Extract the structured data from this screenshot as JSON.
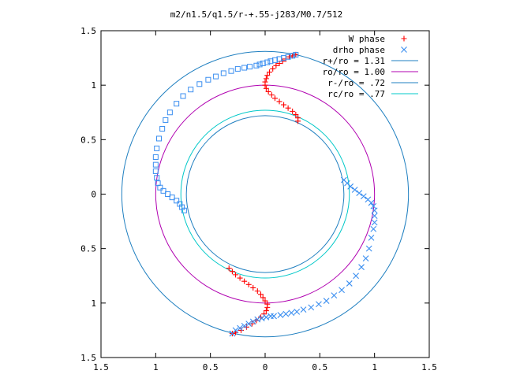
{
  "chart_data": {
    "type": "scatter",
    "title": "m2/n1.5/q1.5/r-+.55-j283/M0.7/512",
    "xlim": [
      -1.5,
      1.5
    ],
    "ylim": [
      -1.5,
      1.5
    ],
    "x_ticks": [
      {
        "value": -1.5,
        "label": "1.5"
      },
      {
        "value": -1,
        "label": "1"
      },
      {
        "value": -0.5,
        "label": "0.5"
      },
      {
        "value": 0,
        "label": "0"
      },
      {
        "value": 0.5,
        "label": "0.5"
      },
      {
        "value": 1,
        "label": "1"
      },
      {
        "value": 1.5,
        "label": "1.5"
      }
    ],
    "y_ticks": [
      {
        "value": 1.5,
        "label": "1.5"
      },
      {
        "value": 1,
        "label": "1"
      },
      {
        "value": 0.5,
        "label": "0.5"
      },
      {
        "value": 0,
        "label": "0"
      },
      {
        "value": -0.5,
        "label": "0.5"
      },
      {
        "value": -1,
        "label": "1"
      },
      {
        "value": -1.5,
        "label": "1.5"
      }
    ],
    "grid": false,
    "legend_position": "top-right",
    "series": [
      {
        "name": "W phase",
        "marker": "+",
        "color": "#ff0000",
        "points": [
          [
            0.28,
            1.28
          ],
          [
            0.25,
            1.27
          ],
          [
            0.22,
            1.26
          ],
          [
            0.19,
            1.24
          ],
          [
            0.16,
            1.22
          ],
          [
            0.13,
            1.2
          ],
          [
            0.1,
            1.18
          ],
          [
            0.07,
            1.15
          ],
          [
            0.04,
            1.12
          ],
          [
            0.02,
            1.09
          ],
          [
            0.01,
            1.06
          ],
          [
            0.0,
            1.03
          ],
          [
            0.0,
            1.0
          ],
          [
            0.01,
            0.97
          ],
          [
            0.03,
            0.94
          ],
          [
            0.06,
            0.91
          ],
          [
            0.09,
            0.88
          ],
          [
            0.13,
            0.85
          ],
          [
            0.17,
            0.82
          ],
          [
            0.21,
            0.79
          ],
          [
            0.25,
            0.76
          ],
          [
            0.28,
            0.73
          ],
          [
            0.3,
            0.7
          ],
          [
            0.3,
            0.67
          ],
          [
            -0.33,
            -0.68
          ],
          [
            -0.3,
            -0.71
          ],
          [
            -0.27,
            -0.74
          ],
          [
            -0.23,
            -0.77
          ],
          [
            -0.19,
            -0.8
          ],
          [
            -0.15,
            -0.83
          ],
          [
            -0.11,
            -0.86
          ],
          [
            -0.07,
            -0.89
          ],
          [
            -0.04,
            -0.92
          ],
          [
            -0.02,
            -0.95
          ],
          [
            0.0,
            -0.98
          ],
          [
            0.02,
            -1.01
          ],
          [
            0.02,
            -1.04
          ],
          [
            0.01,
            -1.07
          ],
          [
            -0.01,
            -1.1
          ],
          [
            -0.04,
            -1.13
          ],
          [
            -0.08,
            -1.16
          ],
          [
            -0.12,
            -1.19
          ],
          [
            -0.17,
            -1.22
          ],
          [
            -0.22,
            -1.25
          ],
          [
            -0.27,
            -1.27
          ],
          [
            -0.3,
            -1.28
          ]
        ]
      },
      {
        "name": "drho phase",
        "marker": "x",
        "color": "#3a8ef0",
        "points": [
          [
            -0.3,
            -1.28
          ],
          [
            -0.27,
            -1.25
          ],
          [
            -0.23,
            -1.23
          ],
          [
            -0.19,
            -1.21
          ],
          [
            -0.15,
            -1.19
          ],
          [
            -0.11,
            -1.17
          ],
          [
            -0.07,
            -1.15
          ],
          [
            -0.03,
            -1.14
          ],
          [
            0.01,
            -1.13
          ],
          [
            0.05,
            -1.12
          ],
          [
            0.08,
            -1.12
          ],
          [
            0.14,
            -1.11
          ],
          [
            0.19,
            -1.1
          ],
          [
            0.24,
            -1.09
          ],
          [
            0.29,
            -1.08
          ],
          [
            0.35,
            -1.06
          ],
          [
            0.42,
            -1.04
          ],
          [
            0.49,
            -1.01
          ],
          [
            0.56,
            -0.98
          ],
          [
            0.63,
            -0.93
          ],
          [
            0.7,
            -0.88
          ],
          [
            0.77,
            -0.82
          ],
          [
            0.83,
            -0.75
          ],
          [
            0.88,
            -0.67
          ],
          [
            0.92,
            -0.59
          ],
          [
            0.95,
            -0.5
          ],
          [
            0.97,
            -0.4
          ],
          [
            0.99,
            -0.32
          ],
          [
            1.0,
            -0.26
          ],
          [
            1.0,
            -0.2
          ],
          [
            1.0,
            -0.15
          ],
          [
            0.99,
            -0.11
          ],
          [
            0.97,
            -0.08
          ],
          [
            0.94,
            -0.05
          ],
          [
            0.9,
            -0.02
          ],
          [
            0.86,
            0.01
          ],
          [
            0.82,
            0.04
          ],
          [
            0.78,
            0.07
          ],
          [
            0.75,
            0.1
          ],
          [
            0.72,
            0.13
          ]
        ]
      },
      {
        "name": "",
        "marker": "square",
        "color": "#3a8ef0",
        "points": [
          [
            0.28,
            1.28
          ],
          [
            0.25,
            1.27
          ],
          [
            0.21,
            1.26
          ],
          [
            0.17,
            1.25
          ],
          [
            0.13,
            1.24
          ],
          [
            0.09,
            1.23
          ],
          [
            0.05,
            1.22
          ],
          [
            0.02,
            1.21
          ],
          [
            -0.02,
            1.2
          ],
          [
            -0.05,
            1.19
          ],
          [
            -0.08,
            1.18
          ],
          [
            -0.14,
            1.17
          ],
          [
            -0.19,
            1.16
          ],
          [
            -0.25,
            1.15
          ],
          [
            -0.31,
            1.13
          ],
          [
            -0.38,
            1.11
          ],
          [
            -0.45,
            1.08
          ],
          [
            -0.52,
            1.05
          ],
          [
            -0.6,
            1.01
          ],
          [
            -0.68,
            0.96
          ],
          [
            -0.75,
            0.9
          ],
          [
            -0.81,
            0.83
          ],
          [
            -0.87,
            0.75
          ],
          [
            -0.91,
            0.68
          ],
          [
            -0.94,
            0.6
          ],
          [
            -0.97,
            0.51
          ],
          [
            -0.99,
            0.42
          ],
          [
            -1.0,
            0.34
          ],
          [
            -1.0,
            0.27
          ],
          [
            -1.0,
            0.21
          ],
          [
            -0.99,
            0.15
          ],
          [
            -0.98,
            0.1
          ],
          [
            -0.96,
            0.06
          ],
          [
            -0.93,
            0.03
          ],
          [
            -0.89,
            0.0
          ],
          [
            -0.85,
            -0.03
          ],
          [
            -0.81,
            -0.06
          ],
          [
            -0.78,
            -0.09
          ],
          [
            -0.76,
            -0.12
          ],
          [
            -0.74,
            -0.15
          ]
        ]
      },
      {
        "name": "r+/ro = 1.31",
        "type": "circle",
        "radius": 1.31,
        "color": "#1f7fc0"
      },
      {
        "name": "ro/ro = 1.00",
        "type": "circle",
        "radius": 1.0,
        "color": "#b000b0"
      },
      {
        "name": "r-/ro = .72",
        "type": "circle",
        "radius": 0.72,
        "color": "#1f7fc0"
      },
      {
        "name": "rc/ro = .77",
        "type": "circle",
        "radius": 0.77,
        "color": "#00c8c8"
      }
    ]
  }
}
